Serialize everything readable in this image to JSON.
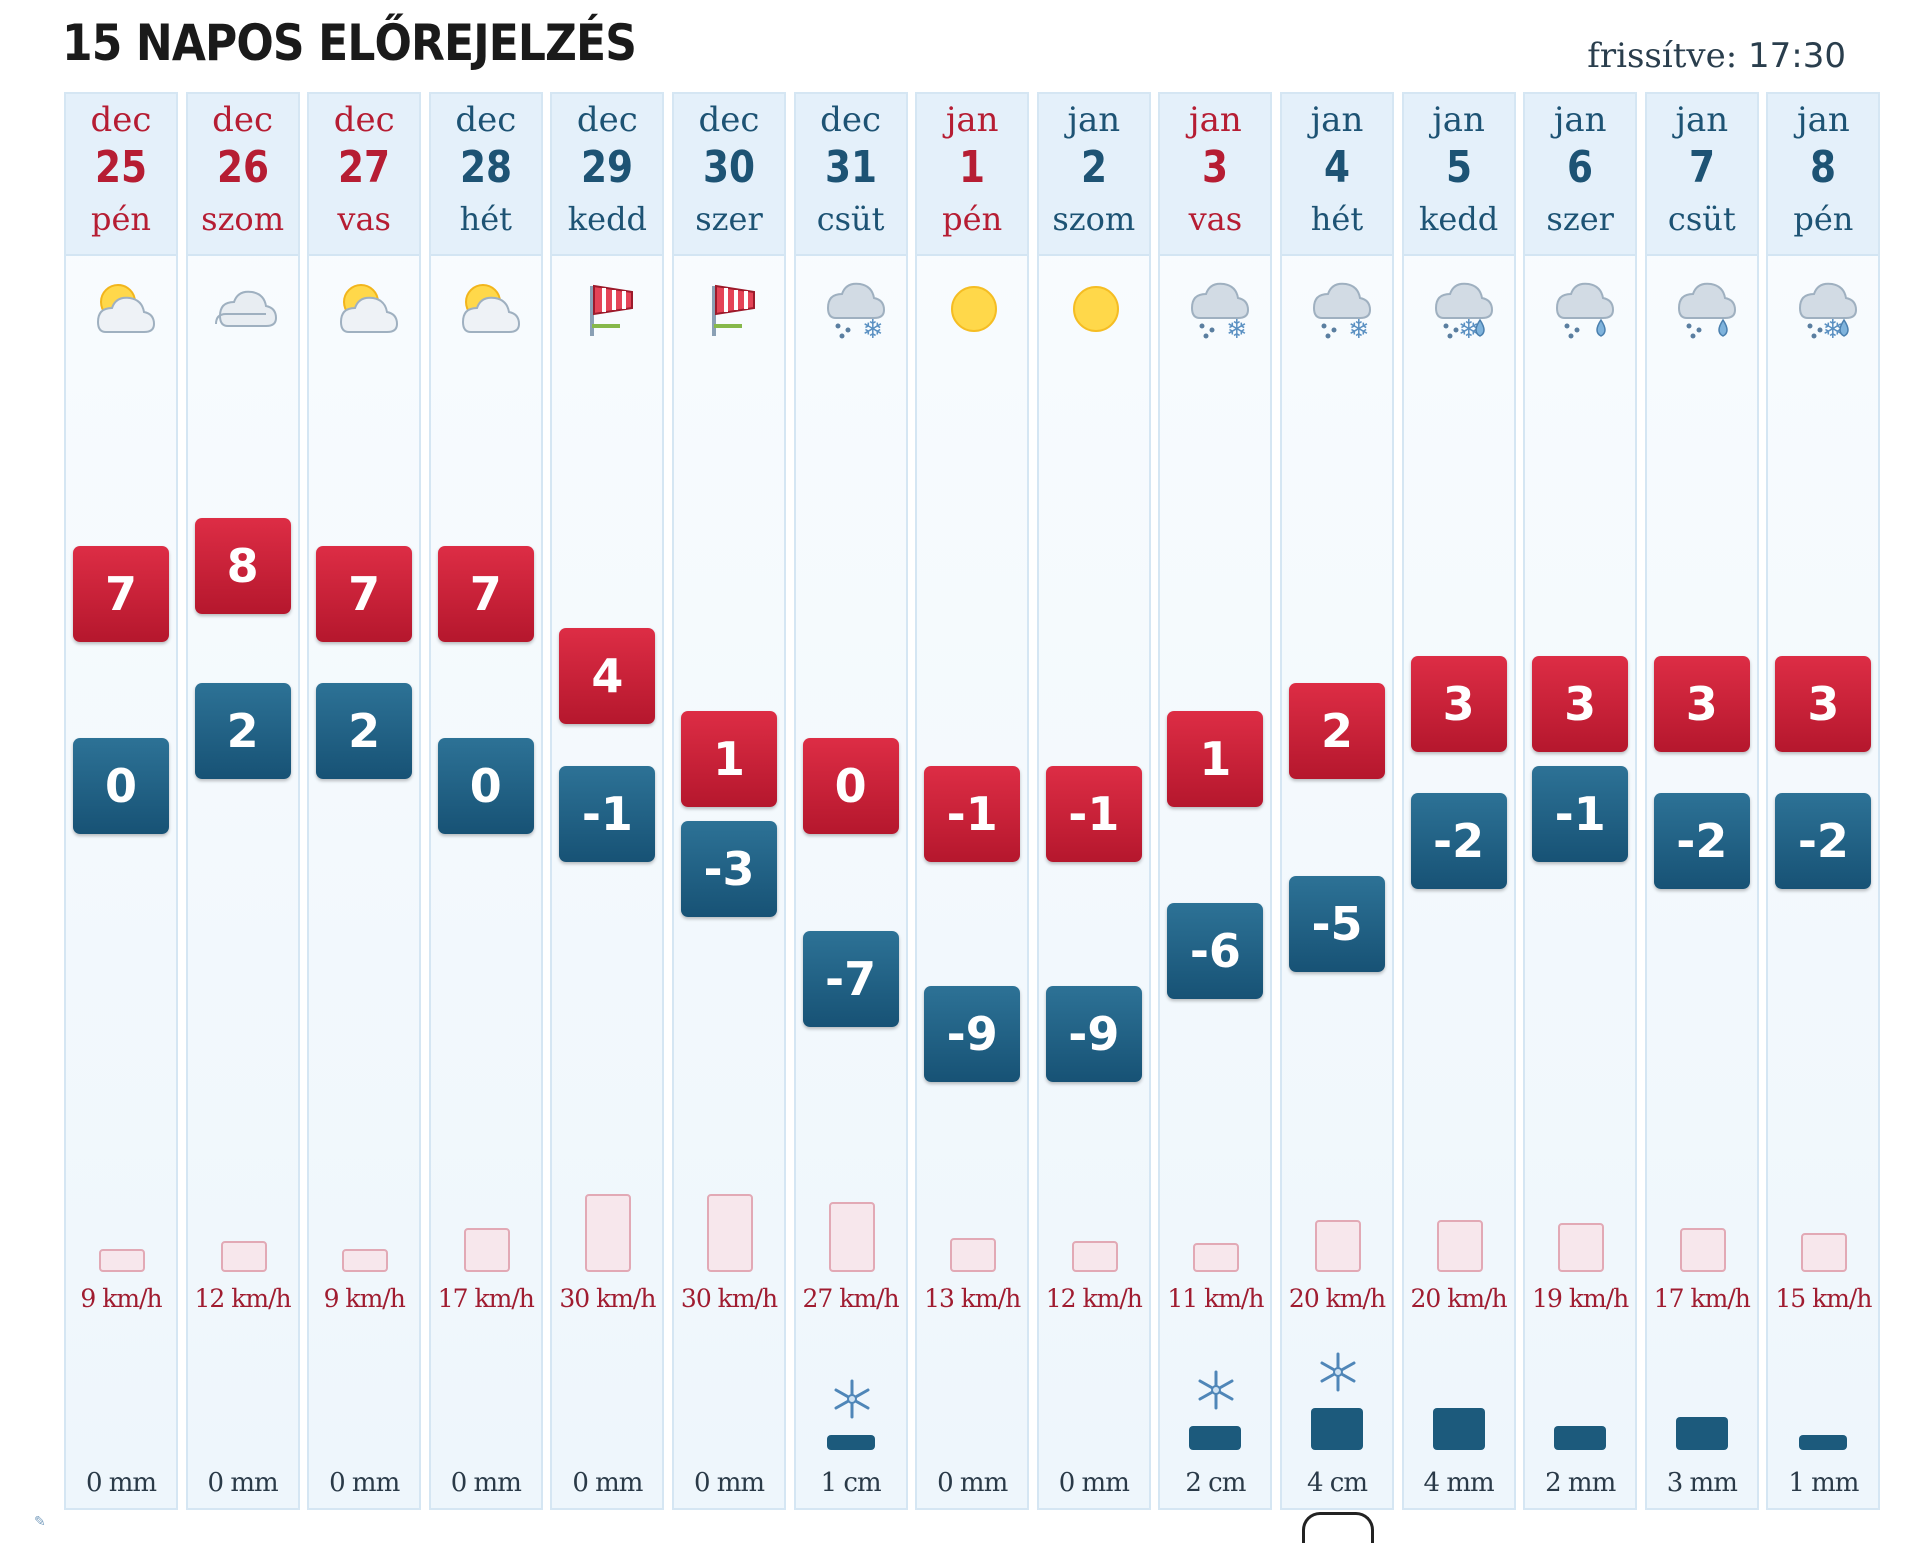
{
  "header": {
    "title": "15 NAPOS ELŐREJELZÉS",
    "updated_label": "frissítve:",
    "updated_time": "17:30"
  },
  "colors": {
    "max_temp": "#c81f36",
    "min_temp": "#1f5f82",
    "weekend_text": "#b61d33",
    "weekday_text": "#1d5374",
    "wind_bar_fill": "#f7e7ec",
    "wind_bar_border": "#e2a9b5",
    "precip_bar": "#1c5a7c"
  },
  "days": [
    {
      "month": "dec",
      "day": "25",
      "weekday": "pén",
      "weekend": true,
      "icon": "sun-cloud-icon",
      "max": "7",
      "min": "0",
      "wind_kmh": 9,
      "wind": "9 km/h",
      "precip_amount": 0,
      "snow": false,
      "precip": "0 mm"
    },
    {
      "month": "dec",
      "day": "26",
      "weekday": "szom",
      "weekend": true,
      "icon": "cloud-icon",
      "max": "8",
      "min": "2",
      "wind_kmh": 12,
      "wind": "12 km/h",
      "precip_amount": 0,
      "snow": false,
      "precip": "0 mm"
    },
    {
      "month": "dec",
      "day": "27",
      "weekday": "vas",
      "weekend": true,
      "icon": "sun-cloud-icon",
      "max": "7",
      "min": "2",
      "wind_kmh": 9,
      "wind": "9 km/h",
      "precip_amount": 0,
      "snow": false,
      "precip": "0 mm"
    },
    {
      "month": "dec",
      "day": "28",
      "weekday": "hét",
      "weekend": false,
      "icon": "sun-cloud-icon",
      "max": "7",
      "min": "0",
      "wind_kmh": 17,
      "wind": "17 km/h",
      "precip_amount": 0,
      "snow": false,
      "precip": "0 mm"
    },
    {
      "month": "dec",
      "day": "29",
      "weekday": "kedd",
      "weekend": false,
      "icon": "windsock-icon",
      "max": "4",
      "min": "-1",
      "wind_kmh": 30,
      "wind": "30 km/h",
      "precip_amount": 0,
      "snow": false,
      "precip": "0 mm"
    },
    {
      "month": "dec",
      "day": "30",
      "weekday": "szer",
      "weekend": false,
      "icon": "windsock-icon",
      "max": "1",
      "min": "-3",
      "wind_kmh": 30,
      "wind": "30 km/h",
      "precip_amount": 0,
      "snow": false,
      "precip": "0 mm"
    },
    {
      "month": "dec",
      "day": "31",
      "weekday": "csüt",
      "weekend": false,
      "icon": "snow-cloud-icon",
      "max": "0",
      "min": "-7",
      "wind_kmh": 27,
      "wind": "27 km/h",
      "precip_amount": 1,
      "snow": true,
      "precip": "1 cm"
    },
    {
      "month": "jan",
      "day": "1",
      "weekday": "pén",
      "weekend": true,
      "icon": "sun-icon",
      "max": "-1",
      "min": "-9",
      "wind_kmh": 13,
      "wind": "13 km/h",
      "precip_amount": 0,
      "snow": false,
      "precip": "0 mm"
    },
    {
      "month": "jan",
      "day": "2",
      "weekday": "szom",
      "weekend": false,
      "icon": "sun-icon",
      "max": "-1",
      "min": "-9",
      "wind_kmh": 12,
      "wind": "12 km/h",
      "precip_amount": 0,
      "snow": false,
      "precip": "0 mm"
    },
    {
      "month": "jan",
      "day": "3",
      "weekday": "vas",
      "weekend": true,
      "icon": "snow-cloud-icon",
      "max": "1",
      "min": "-6",
      "wind_kmh": 11,
      "wind": "11 km/h",
      "precip_amount": 2,
      "snow": true,
      "precip": "2 cm"
    },
    {
      "month": "jan",
      "day": "4",
      "weekday": "hét",
      "weekend": false,
      "icon": "snow-cloud-icon",
      "max": "2",
      "min": "-5",
      "wind_kmh": 20,
      "wind": "20 km/h",
      "precip_amount": 4,
      "snow": true,
      "precip": "4 cm"
    },
    {
      "month": "jan",
      "day": "5",
      "weekday": "kedd",
      "weekend": false,
      "icon": "sleet-cloud-icon",
      "max": "3",
      "min": "-2",
      "wind_kmh": 20,
      "wind": "20 km/h",
      "precip_amount": 4,
      "snow": false,
      "precip": "4 mm"
    },
    {
      "month": "jan",
      "day": "6",
      "weekday": "szer",
      "weekend": false,
      "icon": "rain-cloud-icon",
      "max": "3",
      "min": "-1",
      "wind_kmh": 19,
      "wind": "19 km/h",
      "precip_amount": 2,
      "snow": false,
      "precip": "2 mm"
    },
    {
      "month": "jan",
      "day": "7",
      "weekday": "csüt",
      "weekend": false,
      "icon": "rain-cloud-icon",
      "max": "3",
      "min": "-2",
      "wind_kmh": 17,
      "wind": "17 km/h",
      "precip_amount": 3,
      "snow": false,
      "precip": "3 mm"
    },
    {
      "month": "jan",
      "day": "8",
      "weekday": "pén",
      "weekend": false,
      "icon": "sleet-cloud-icon",
      "max": "3",
      "min": "-2",
      "wind_kmh": 15,
      "wind": "15 km/h",
      "precip_amount": 1,
      "snow": false,
      "precip": "1 mm"
    }
  ]
}
